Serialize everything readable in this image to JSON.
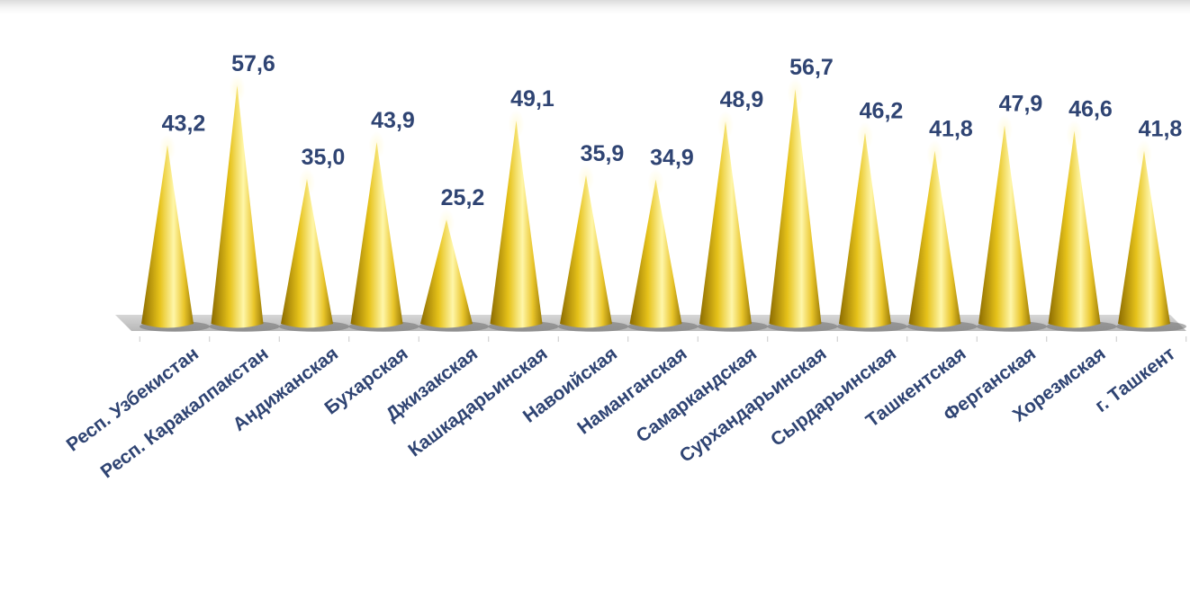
{
  "chart_data": {
    "type": "bar",
    "shape": "cone",
    "title": "",
    "xlabel": "",
    "ylabel": "",
    "categories": [
      "Респ. Узбекистан",
      "Респ. Каракалпакстан",
      "Андижанская",
      "Бухарская",
      "Джизакская",
      "Кашкадарьинская",
      "Навоийская",
      "Наманганская",
      "Самаркандская",
      "Сурхандарьинская",
      "Сырдарьинская",
      "Ташкентская",
      "Ферганская",
      "Хорезмская",
      "г. Ташкент"
    ],
    "values": [
      43.2,
      57.6,
      35.0,
      43.9,
      25.2,
      49.1,
      35.9,
      34.9,
      48.9,
      56.7,
      46.2,
      41.8,
      47.9,
      46.6,
      41.8
    ],
    "data_labels": [
      "43,2",
      "57,6",
      "35,0",
      "43,9",
      "25,2",
      "49,1",
      "35,9",
      "34,9",
      "48,9",
      "56,7",
      "46,2",
      "41,8",
      "47,9",
      "46,6",
      "41,8"
    ],
    "ylim": [
      0,
      60
    ],
    "grid": false,
    "legend": "none",
    "colors": {
      "cone_light": "#fff6a8",
      "cone_mid": "#e6c21a",
      "cone_dark": "#8a6a00",
      "floor": "#9c9c9c",
      "text": "#2f4473"
    }
  }
}
